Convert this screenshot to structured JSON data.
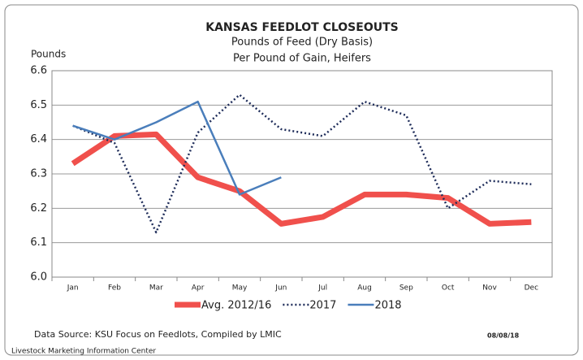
{
  "chart_data": {
    "type": "line",
    "title": "KANSAS FEEDLOT CLOSEOUTS",
    "subtitle": [
      "Pounds of Feed (Dry Basis)",
      "Per Pound of Gain, Heifers"
    ],
    "y_label": "Pounds",
    "categories": [
      "Jan",
      "Feb",
      "Mar",
      "Apr",
      "May",
      "Jun",
      "Jul",
      "Aug",
      "Sep",
      "Oct",
      "Nov",
      "Dec"
    ],
    "series": [
      {
        "name": "Avg. 2012/16",
        "color": "#f0504c",
        "line_style": "solid",
        "line_width": 7,
        "values": [
          6.33,
          6.41,
          6.415,
          6.29,
          6.25,
          6.155,
          6.175,
          6.24,
          6.24,
          6.23,
          6.155,
          6.16
        ]
      },
      {
        "name": "2017",
        "color": "#1f2d5a",
        "line_style": "dotted",
        "line_width": 2.5,
        "values": [
          6.44,
          6.39,
          6.13,
          6.42,
          6.53,
          6.43,
          6.41,
          6.51,
          6.47,
          6.2,
          6.28,
          6.27
        ]
      },
      {
        "name": "2018",
        "color": "#4a7ebb",
        "line_style": "solid",
        "line_width": 2.5,
        "values": [
          6.44,
          6.4,
          6.45,
          6.51,
          6.24,
          6.29,
          null,
          null,
          null,
          null,
          null,
          null
        ]
      }
    ],
    "ylim": [
      6.0,
      6.6
    ],
    "yticks": [
      {
        "value": 6.0,
        "label": "6.0"
      },
      6.1,
      6.2,
      6.3,
      6.4,
      6.5,
      6.6
    ],
    "grid": true,
    "legend": "bottom",
    "source": "Data Source:  KSU Focus on Feedlots, Compiled by LMIC",
    "date": "08/08/18",
    "footer": "Livestock Marketing Information Center"
  }
}
